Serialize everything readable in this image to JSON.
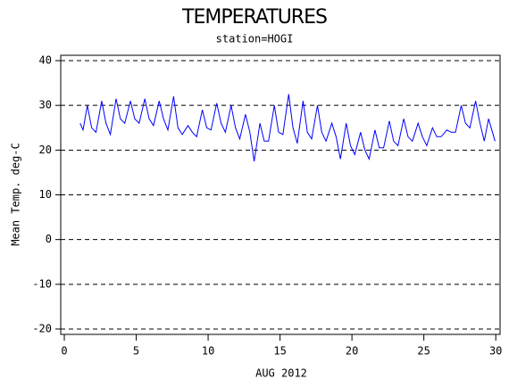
{
  "chart_data": {
    "type": "line",
    "title": "TEMPERATURES",
    "subtitle": "station=HOGI",
    "x_label": "AUG 2012",
    "y_label": "Mean Temp. deg-C",
    "color": "#0000ff",
    "grid": true,
    "xlim": [
      -0.25,
      30.3
    ],
    "xticks": [
      0,
      5,
      10,
      15,
      20,
      25,
      30
    ],
    "ylim": [
      -21.2,
      41.2
    ],
    "yticks": [
      40,
      30,
      20,
      10,
      0,
      -10,
      -20
    ],
    "x": [
      1.1,
      1.3,
      1.6,
      1.9,
      2.2,
      2.6,
      2.9,
      3.2,
      3.6,
      3.9,
      4.2,
      4.6,
      4.9,
      5.2,
      5.6,
      5.9,
      6.2,
      6.6,
      6.9,
      7.2,
      7.6,
      7.9,
      8.2,
      8.6,
      8.9,
      9.2,
      9.6,
      9.9,
      10.2,
      10.6,
      10.9,
      11.2,
      11.6,
      11.9,
      12.2,
      12.6,
      12.9,
      13.2,
      13.6,
      13.9,
      14.2,
      14.6,
      14.9,
      15.2,
      15.6,
      15.9,
      16.2,
      16.6,
      16.9,
      17.2,
      17.6,
      17.9,
      18.2,
      18.6,
      18.9,
      19.2,
      19.6,
      19.9,
      20.2,
      20.6,
      20.9,
      21.2,
      21.6,
      21.9,
      22.2,
      22.6,
      22.9,
      23.2,
      23.6,
      23.9,
      24.2,
      24.6,
      24.9,
      25.2,
      25.6,
      25.9,
      26.2,
      26.6,
      26.9,
      27.2,
      27.6,
      27.9,
      28.2,
      28.6,
      28.9,
      29.2,
      29.5,
      29.95
    ],
    "values": [
      26,
      24.5,
      30,
      25,
      24,
      31,
      26,
      23.5,
      31.5,
      27,
      26,
      31,
      27,
      26,
      31.5,
      27,
      25.5,
      31,
      27,
      24.5,
      32,
      25,
      23.5,
      25.5,
      24,
      23,
      29,
      25,
      24.5,
      30.5,
      26,
      24,
      30,
      25,
      22.5,
      28,
      24,
      17.5,
      26,
      22,
      22,
      30,
      24,
      23.5,
      32.5,
      25,
      21.5,
      31,
      24,
      22.5,
      30,
      24,
      22,
      26,
      23,
      18,
      26,
      21,
      19,
      24,
      20,
      18,
      24.5,
      20.5,
      20.5,
      26.5,
      22,
      21,
      27,
      23,
      22,
      26,
      23,
      21,
      25,
      23,
      23,
      24.5,
      24,
      24,
      30,
      26,
      25,
      31,
      26,
      22,
      27,
      22
    ]
  }
}
